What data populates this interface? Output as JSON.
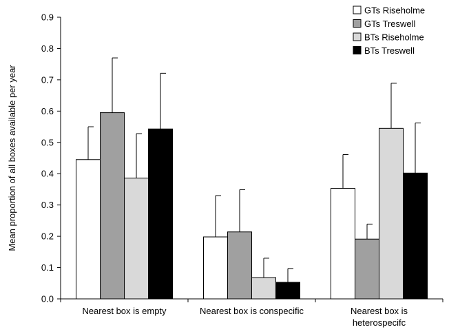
{
  "chart_data": {
    "type": "bar",
    "title": "",
    "xlabel": "",
    "ylabel": "Mean proportion of all boxes available per year",
    "ylim": [
      0,
      0.9
    ],
    "yticks": [
      "0.0",
      "0.1",
      "0.2",
      "0.3",
      "0.4",
      "0.5",
      "0.6",
      "0.7",
      "0.8",
      "0.9"
    ],
    "grid": false,
    "legend_position": "top-right",
    "categories": [
      [
        "Nearest box is empty"
      ],
      [
        "Nearest box is conspecific"
      ],
      [
        "Nearest box is",
        "heterospecifc"
      ]
    ],
    "series": [
      {
        "name": "GTs Riseholme",
        "color": "#ffffff",
        "values": [
          0.445,
          0.198,
          0.353
        ],
        "errors": [
          0.105,
          0.132,
          0.108
        ]
      },
      {
        "name": "GTs Treswell",
        "color": "#a0a0a0",
        "values": [
          0.595,
          0.214,
          0.191
        ],
        "errors": [
          0.175,
          0.135,
          0.048
        ]
      },
      {
        "name": "BTs Riseholme",
        "color": "#d9d9d9",
        "values": [
          0.386,
          0.068,
          0.545
        ],
        "errors": [
          0.142,
          0.062,
          0.144
        ]
      },
      {
        "name": "BTs Treswell",
        "color": "#000000",
        "values": [
          0.543,
          0.053,
          0.402
        ],
        "errors": [
          0.178,
          0.044,
          0.16
        ]
      }
    ]
  }
}
